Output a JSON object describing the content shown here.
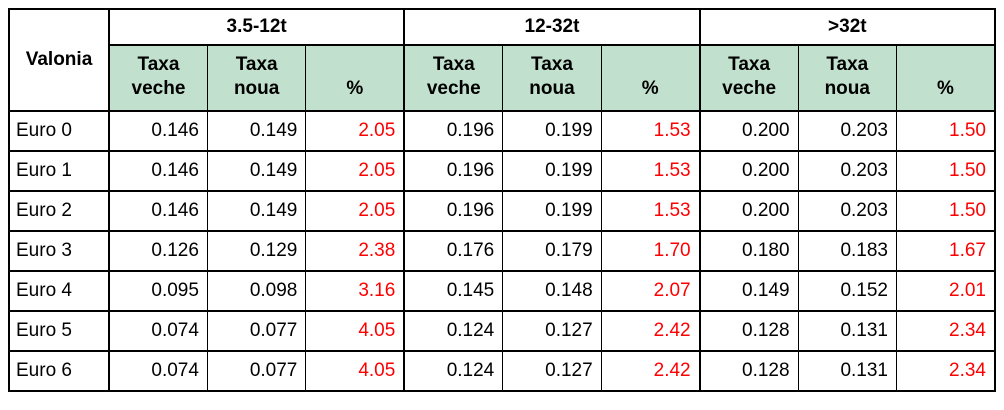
{
  "colors": {
    "header_fill": "#c1e0cd",
    "grid_border": "#000000",
    "percent_text": "#fe0000",
    "body_text": "#000000",
    "table_background": "#ffffff"
  },
  "table": {
    "corner_header": "Valonia",
    "groups": [
      {
        "label": "3.5-12t"
      },
      {
        "label": "12-32t"
      },
      {
        "label": ">32t"
      }
    ],
    "subheaders": [
      "Taxa veche",
      "Taxa noua",
      "%",
      "Taxa veche",
      "Taxa noua",
      "%",
      "Taxa veche",
      "Taxa noua",
      "%"
    ],
    "rows": [
      {
        "label": "Euro 0",
        "values": [
          "0.146",
          "0.149",
          "2.05",
          "0.196",
          "0.199",
          "1.53",
          "0.200",
          "0.203",
          "1.50"
        ]
      },
      {
        "label": "Euro 1",
        "values": [
          "0.146",
          "0.149",
          "2.05",
          "0.196",
          "0.199",
          "1.53",
          "0.200",
          "0.203",
          "1.50"
        ]
      },
      {
        "label": "Euro 2",
        "values": [
          "0.146",
          "0.149",
          "2.05",
          "0.196",
          "0.199",
          "1.53",
          "0.200",
          "0.203",
          "1.50"
        ]
      },
      {
        "label": "Euro 3",
        "values": [
          "0.126",
          "0.129",
          "2.38",
          "0.176",
          "0.179",
          "1.70",
          "0.180",
          "0.183",
          "1.67"
        ]
      },
      {
        "label": "Euro 4",
        "values": [
          "0.095",
          "0.098",
          "3.16",
          "0.145",
          "0.148",
          "2.07",
          "0.149",
          "0.152",
          "2.01"
        ]
      },
      {
        "label": "Euro 5",
        "values": [
          "0.074",
          "0.077",
          "4.05",
          "0.124",
          "0.127",
          "2.42",
          "0.128",
          "0.131",
          "2.34"
        ]
      },
      {
        "label": "Euro 6",
        "values": [
          "0.074",
          "0.077",
          "4.05",
          "0.124",
          "0.127",
          "2.42",
          "0.128",
          "0.131",
          "2.34"
        ]
      }
    ]
  },
  "chart_data": {
    "type": "table",
    "row_header": "Valonia",
    "column_groups": [
      "3.5-12t",
      "12-32t",
      ">32t"
    ],
    "columns_per_group": [
      "Taxa veche",
      "Taxa noua",
      "%"
    ],
    "categories": [
      "Euro 0",
      "Euro 1",
      "Euro 2",
      "Euro 3",
      "Euro 4",
      "Euro 5",
      "Euro 6"
    ],
    "series": [
      {
        "name": "3.5-12t Taxa veche",
        "values": [
          0.146,
          0.146,
          0.146,
          0.126,
          0.095,
          0.074,
          0.074
        ]
      },
      {
        "name": "3.5-12t Taxa noua",
        "values": [
          0.149,
          0.149,
          0.149,
          0.129,
          0.098,
          0.077,
          0.077
        ]
      },
      {
        "name": "3.5-12t %",
        "values": [
          2.05,
          2.05,
          2.05,
          2.38,
          3.16,
          4.05,
          4.05
        ]
      },
      {
        "name": "12-32t Taxa veche",
        "values": [
          0.196,
          0.196,
          0.196,
          0.176,
          0.145,
          0.124,
          0.124
        ]
      },
      {
        "name": "12-32t Taxa noua",
        "values": [
          0.199,
          0.199,
          0.199,
          0.179,
          0.148,
          0.127,
          0.127
        ]
      },
      {
        "name": "12-32t %",
        "values": [
          1.53,
          1.53,
          1.53,
          1.7,
          2.07,
          2.42,
          2.42
        ]
      },
      {
        "name": ">32t Taxa veche",
        "values": [
          0.2,
          0.2,
          0.2,
          0.18,
          0.149,
          0.128,
          0.128
        ]
      },
      {
        "name": ">32t Taxa noua",
        "values": [
          0.203,
          0.203,
          0.203,
          0.183,
          0.152,
          0.131,
          0.131
        ]
      },
      {
        "name": ">32t %",
        "values": [
          1.5,
          1.5,
          1.5,
          1.67,
          2.01,
          2.34,
          2.34
        ]
      }
    ]
  }
}
